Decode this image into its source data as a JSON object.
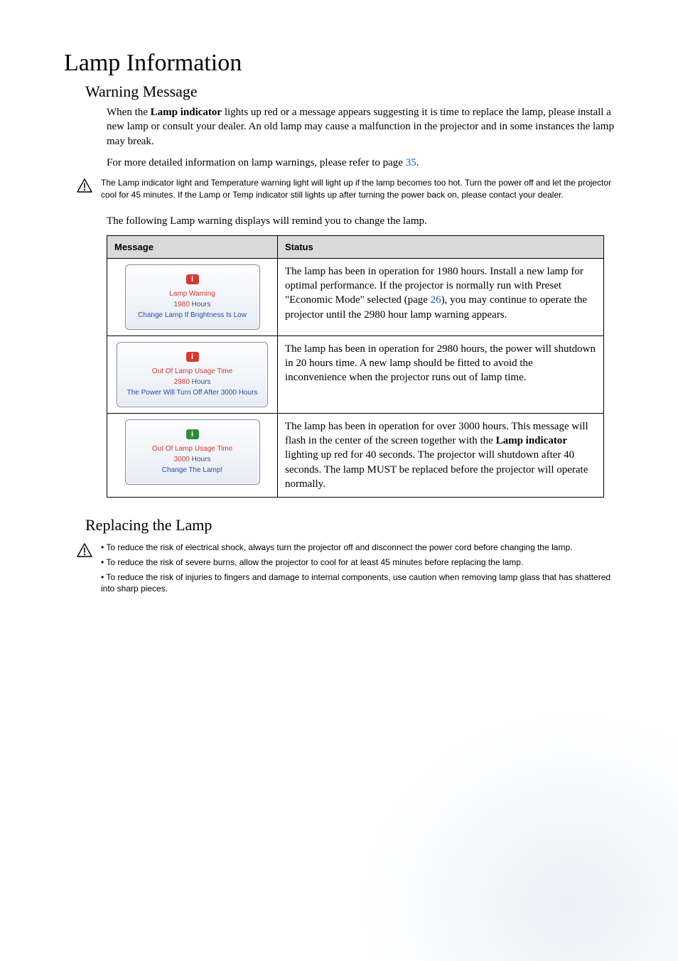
{
  "page": {
    "title": "Lamp Information",
    "section1_heading": "Warning Message",
    "intro_para": "When the ",
    "intro_bold": "Lamp indicator",
    "intro_rest": " lights up red or a message appears suggesting it is time to replace the lamp, please install a new lamp or consult your dealer. An old lamp may cause a malfunction in the projector and in some instances the lamp may break.",
    "detail_ref": "For more detailed information on lamp warnings, please refer to page ",
    "detail_ref_link": "35",
    "detail_ref_end": ".",
    "caution1": "The Lamp indicator light and Temperature warning light will light up if the lamp becomes too hot. Turn the power off and let the projector cool for 45 minutes. If the Lamp or Temp indicator still lights up after turning the power back on, please contact your dealer.",
    "table_intro": "The following Lamp warning displays will remind you to change the lamp.",
    "table": {
      "header_message": "Message",
      "header_status": "Status",
      "rows": [
        {
          "badge_color": "#d43a2f",
          "text_color": "#d43a2f",
          "line1": "Lamp Warning",
          "line2_pre": "1980",
          "line2_post": "Hours",
          "line3": "Change Lamp If Brightness Is Low",
          "status_pre": "The lamp has been in operation for 1980 hours. Install a new lamp for optimal performance. If the projector is normally run with Preset \"Economic Mode\" selected (page ",
          "status_link": "26",
          "status_post": "), you may continue to operate the projector until the 2980 hour lamp warning appears."
        },
        {
          "badge_color": "#d43a2f",
          "text_color": "#d43a2f",
          "line1": "Out Of Lamp Usage Time",
          "line2_pre": "2980",
          "line2_post": "Hours",
          "line3": "The Power Will Turn Off After 3000 Hours",
          "status": "The lamp has been in operation for 2980 hours, the power will shutdown in 20 hours time. A new lamp should be fitted to avoid the inconvenience when the projector runs out of lamp time."
        },
        {
          "badge_color": "#2e8b3d",
          "text_color": "#d43a2f",
          "line1": "Out Of Lamp Usage Time",
          "line2_pre": "3000",
          "line2_post": "Hours",
          "line3": "Change The Lamp!",
          "status_pre": "The lamp has been in operation for over 3000 hours. This message will flash in the center of the screen together with the ",
          "status_bold": "Lamp indicator",
          "status_post": " lighting up red for 40 seconds. The projector will shutdown after 40 seconds. The lamp MUST be replaced before the projector will operate normally."
        }
      ]
    },
    "section2_heading": "Replacing the Lamp",
    "caution2_bullets": [
      "To reduce the risk of electrical shock, always turn the projector off and disconnect the power cord before changing the lamp.",
      "To reduce the risk of severe burns, allow the projector to cool for at least 45 minutes before replacing the lamp.",
      "To reduce the risk of injuries to fingers and damage to internal components, use caution when removing lamp glass that has shattered into sharp pieces."
    ]
  },
  "colors": {
    "link": "#0b5bcc",
    "header_bg": "#d9d9d9",
    "panel_border": "#7a8aa8"
  }
}
